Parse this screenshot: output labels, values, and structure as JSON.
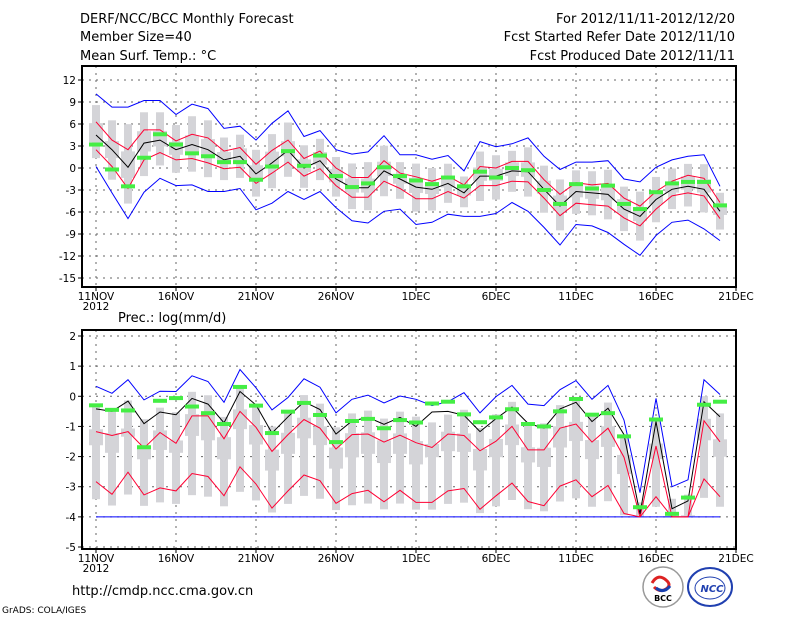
{
  "header": {
    "title": "DERF/NCC/BCC Monthly Forecast",
    "member_size": "Member Size=40",
    "variable": "Mean Surf. Temp.: °C",
    "period": "For 2012/11/11-2012/12/20",
    "started": "Fcst Started Refer Date 2012/11/10",
    "produced": "Fcst Produced Date 2012/11/11"
  },
  "footer": {
    "url": "http://cmdp.ncc.cma.gov.cn",
    "grads": "GrADS: COLA/IGES",
    "logo_bcc": "BCC",
    "logo_ncc": "NCC"
  },
  "colors": {
    "max_min": "#0000ff",
    "std": "#ff0033",
    "mean": "#000000",
    "mark": "#44ee44",
    "box": "#d4d4d8",
    "grid": "#666666"
  },
  "chart_data": [
    {
      "type": "line",
      "title": "Mean Surf. Temp.: °C",
      "x_start_label": "11NOV",
      "year_label": "2012",
      "xticks": [
        "11NOV",
        "16NOV",
        "21NOV",
        "26NOV",
        "1DEC",
        "6DEC",
        "11DEC",
        "16DEC",
        "21DEC"
      ],
      "yticks": [
        "12",
        "9",
        "6",
        "3",
        "0",
        "-3",
        "-6",
        "-9",
        "-12",
        "-15"
      ],
      "ylim": [
        -15,
        12
      ],
      "grid": true,
      "series": [
        {
          "name": "max",
          "values": [
            10.1,
            8.3,
            8.3,
            9.2,
            9.2,
            7.3,
            8.7,
            8.1,
            5.4,
            5.7,
            3.8,
            6.1,
            7.8,
            4.3,
            5.1,
            2.5,
            1.9,
            2.2,
            4.4,
            1.8,
            1.8,
            1.2,
            1.7,
            -0.4,
            3.6,
            2.9,
            3.3,
            4.1,
            1.6,
            -0.2,
            0.8,
            0.8,
            1.0,
            -1.5,
            -1.9,
            0.1,
            1.1,
            1.6,
            1.8,
            -2.5
          ]
        },
        {
          "name": "mean_plus_std",
          "values": [
            6.3,
            3.8,
            2.5,
            5.2,
            5.2,
            3.7,
            4.6,
            4.1,
            2.3,
            2.8,
            0.5,
            2.4,
            3.8,
            1.3,
            2.3,
            0.0,
            -1.3,
            -1.3,
            1.0,
            -0.7,
            -1.2,
            -1.8,
            -1.1,
            -2.3,
            0.2,
            0.0,
            0.9,
            0.9,
            -1.6,
            -3.6,
            -2.0,
            -2.3,
            -2.1,
            -4.1,
            -5.2,
            -3.2,
            -1.8,
            -1.0,
            -1.4,
            -4.7
          ]
        },
        {
          "name": "mean",
          "values": [
            4.5,
            2.5,
            0.1,
            3.4,
            3.8,
            2.5,
            3.2,
            2.5,
            1.1,
            1.6,
            -0.8,
            0.7,
            2.4,
            0.0,
            1.0,
            -1.5,
            -2.7,
            -2.7,
            -0.4,
            -1.5,
            -2.6,
            -2.9,
            -2.1,
            -3.4,
            -1.1,
            -1.1,
            -0.4,
            -0.5,
            -2.9,
            -5.2,
            -3.2,
            -3.4,
            -3.6,
            -5.6,
            -6.6,
            -4.3,
            -2.9,
            -2.5,
            -2.9,
            -5.9
          ]
        },
        {
          "name": "mean_minus_std",
          "values": [
            2.5,
            0.2,
            -2.8,
            1.1,
            2.1,
            1.1,
            1.3,
            0.7,
            -0.1,
            0.1,
            -2.1,
            -0.7,
            0.8,
            -1.1,
            -0.1,
            -2.4,
            -4.0,
            -4.0,
            -1.8,
            -2.8,
            -4.2,
            -4.2,
            -3.2,
            -4.1,
            -2.4,
            -2.4,
            -1.8,
            -1.9,
            -4.1,
            -6.5,
            -4.8,
            -5.0,
            -5.2,
            -6.8,
            -7.9,
            -5.6,
            -3.8,
            -3.4,
            -3.8,
            -6.9
          ]
        },
        {
          "name": "min",
          "values": [
            0.2,
            -3.4,
            -6.9,
            -3.3,
            -1.4,
            -2.4,
            -2.3,
            -3.2,
            -3.2,
            -2.8,
            -5.7,
            -4.8,
            -3.2,
            -4.3,
            -3.2,
            -5.4,
            -7.2,
            -7.5,
            -5.9,
            -5.6,
            -7.7,
            -7.4,
            -6.3,
            -6.6,
            -6.6,
            -6.2,
            -4.7,
            -5.9,
            -8.1,
            -10.5,
            -7.7,
            -7.9,
            -8.8,
            -10.4,
            -11.9,
            -9.2,
            -7.4,
            -7.1,
            -8.3,
            -9.9
          ]
        },
        {
          "name": "median_mark",
          "values": [
            3.2,
            -0.2,
            -2.5,
            1.4,
            4.6,
            3.2,
            2.0,
            1.6,
            0.8,
            0.8,
            -1.6,
            0.2,
            2.3,
            0.3,
            1.7,
            -1.1,
            -2.6,
            -2.1,
            0.1,
            -1.1,
            -1.7,
            -2.2,
            -1.3,
            -2.5,
            -0.5,
            -1.3,
            0.0,
            -0.3,
            -3.0,
            -4.9,
            -2.2,
            -2.8,
            -2.4,
            -4.9,
            -5.6,
            -3.3,
            -2.1,
            -1.9,
            -1.9,
            -5.1
          ]
        }
      ]
    },
    {
      "type": "line",
      "title": "Prec.: log(mm/d)",
      "x_start_label": "11NOV",
      "year_label": "2012",
      "xticks": [
        "11NOV",
        "16NOV",
        "21NOV",
        "26NOV",
        "1DEC",
        "6DEC",
        "11DEC",
        "16DEC",
        "21DEC"
      ],
      "yticks": [
        "2",
        "1",
        "0",
        "-1",
        "-2",
        "-3",
        "-4",
        "-5"
      ],
      "ylim": [
        -5,
        2
      ],
      "grid": true,
      "series": [
        {
          "name": "max",
          "values": [
            0.33,
            0.1,
            0.55,
            -0.12,
            0.17,
            0.16,
            0.68,
            0.49,
            -0.2,
            0.89,
            0.28,
            -0.45,
            -0.04,
            0.58,
            0.3,
            -0.55,
            -0.1,
            0.04,
            -0.22,
            0.01,
            -0.1,
            -0.31,
            -0.18,
            0.12,
            -0.55,
            -0.01,
            0.36,
            -0.26,
            -0.31,
            0.22,
            0.52,
            -0.1,
            0.36,
            -0.79,
            -3.2,
            -0.07,
            -3.0,
            -2.77,
            0.55,
            0.06
          ]
        },
        {
          "name": "mean_plus_std",
          "values": [
            -1.17,
            -1.3,
            -1.17,
            -1.72,
            -1.2,
            -1.56,
            -0.65,
            -0.65,
            -1.41,
            -0.5,
            -1.03,
            -1.83,
            -1.27,
            -0.77,
            -1.06,
            -1.75,
            -1.27,
            -1.25,
            -1.52,
            -1.29,
            -1.54,
            -1.7,
            -1.25,
            -1.3,
            -1.81,
            -1.49,
            -1.0,
            -1.78,
            -1.78,
            -1.06,
            -0.92,
            -1.52,
            -1.06,
            -2.02,
            -4.0,
            -1.65,
            -4.0,
            -4.0,
            -0.81,
            -1.51
          ]
        },
        {
          "name": "mean",
          "values": [
            -0.42,
            -0.5,
            -0.16,
            -0.91,
            -0.52,
            -0.61,
            -0.07,
            -0.26,
            -0.88,
            0.16,
            -0.29,
            -1.22,
            -0.68,
            -0.18,
            -0.44,
            -1.25,
            -0.82,
            -0.7,
            -0.93,
            -0.7,
            -1.0,
            -0.52,
            -0.5,
            -0.63,
            -1.17,
            -0.74,
            -0.36,
            -0.9,
            -1.06,
            -0.42,
            -0.2,
            -0.84,
            -0.4,
            -1.27,
            -3.9,
            -0.84,
            -3.73,
            -3.47,
            -0.18,
            -0.68
          ]
        },
        {
          "name": "mean_minus_std",
          "values": [
            -2.83,
            -3.25,
            -2.52,
            -3.27,
            -3.04,
            -3.14,
            -2.56,
            -2.66,
            -3.3,
            -2.34,
            -2.91,
            -3.71,
            -3.14,
            -2.61,
            -2.8,
            -3.55,
            -3.23,
            -3.12,
            -3.5,
            -3.12,
            -3.52,
            -3.52,
            -3.14,
            -3.06,
            -3.75,
            -3.3,
            -2.88,
            -3.49,
            -3.63,
            -2.98,
            -2.77,
            -3.33,
            -2.96,
            -3.89,
            -4.0,
            -3.33,
            -4.0,
            -4.0,
            -2.74,
            -3.33
          ]
        },
        {
          "name": "min",
          "values": [
            -4,
            -4,
            -4,
            -4,
            -4,
            -4,
            -4,
            -4,
            -4,
            -4,
            -4,
            -4,
            -4,
            -4,
            -4,
            -4,
            -4,
            -4,
            -4,
            -4,
            -4,
            -4,
            -4,
            -4,
            -4,
            -4,
            -4,
            -4,
            -4,
            -4,
            -4,
            -4,
            -4,
            -4,
            -4,
            -4,
            -4,
            -4,
            -4,
            -4
          ]
        },
        {
          "name": "median_mark",
          "values": [
            -0.3,
            -0.45,
            -0.47,
            -1.69,
            -0.15,
            -0.06,
            -0.34,
            -0.56,
            -0.92,
            0.31,
            -0.31,
            -1.22,
            -0.51,
            -0.22,
            -0.62,
            -1.52,
            -0.82,
            -0.75,
            -1.06,
            -0.79,
            -0.87,
            -0.24,
            -0.18,
            -0.6,
            -0.86,
            -0.7,
            -0.43,
            -0.92,
            -1.0,
            -0.5,
            -0.09,
            -0.61,
            -0.56,
            -1.33,
            -3.68,
            -0.77,
            -3.9,
            -3.36,
            -0.28,
            -0.18
          ]
        }
      ]
    }
  ]
}
